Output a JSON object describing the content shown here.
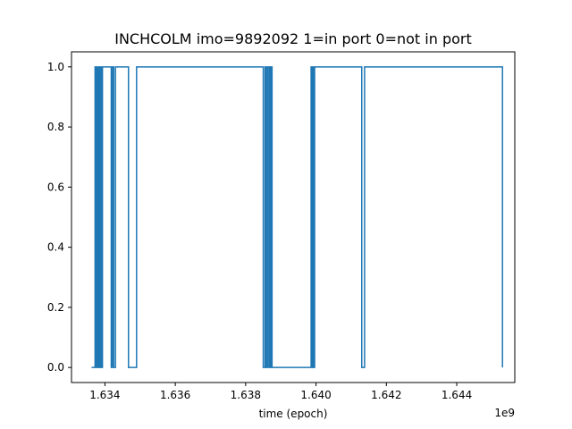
{
  "chart_data": {
    "type": "line",
    "title": "INCHCOLM imo=9892092 1=in port 0=not in port",
    "xlabel": "time (epoch)",
    "ylabel": "",
    "x_offset_label": "1e9",
    "xlim": [
      1.63305,
      1.64565
    ],
    "ylim": [
      -0.05,
      1.05
    ],
    "xticks": [
      1.634,
      1.636,
      1.638,
      1.64,
      1.642,
      1.644
    ],
    "xtick_labels": [
      "1.634",
      "1.636",
      "1.638",
      "1.640",
      "1.642",
      "1.644"
    ],
    "yticks": [
      0.0,
      0.2,
      0.4,
      0.6,
      0.8,
      1.0
    ],
    "ytick_labels": [
      "0.0",
      "0.2",
      "0.4",
      "0.6",
      "0.8",
      "1.0"
    ],
    "grid": false,
    "legend": "none",
    "line_color": "#1f77b4",
    "series": [
      {
        "step": "post",
        "x": [
          1.63362,
          1.63372,
          1.63374,
          1.63377,
          1.63379,
          1.63381,
          1.63382,
          1.63384,
          1.63385,
          1.63388,
          1.6339,
          1.63393,
          1.63418,
          1.63421,
          1.63425,
          1.6343,
          1.63467,
          1.6349,
          1.6385,
          1.63855,
          1.63858,
          1.63862,
          1.63866,
          1.63868,
          1.6387,
          1.63873,
          1.63875,
          1.63986,
          1.63988,
          1.63989,
          1.6399,
          1.63991,
          1.63992,
          1.63994,
          1.63995,
          1.63996,
          1.6413,
          1.64138,
          1.6453
        ],
        "y": [
          0,
          1,
          0,
          1,
          0,
          1,
          0,
          1,
          0,
          1,
          0,
          1,
          0,
          1,
          0,
          1,
          0,
          1,
          0,
          1,
          0,
          1,
          0,
          1,
          0,
          1,
          0,
          1,
          0,
          1,
          0,
          1,
          0,
          1,
          0,
          1,
          0,
          1,
          0
        ]
      }
    ]
  }
}
